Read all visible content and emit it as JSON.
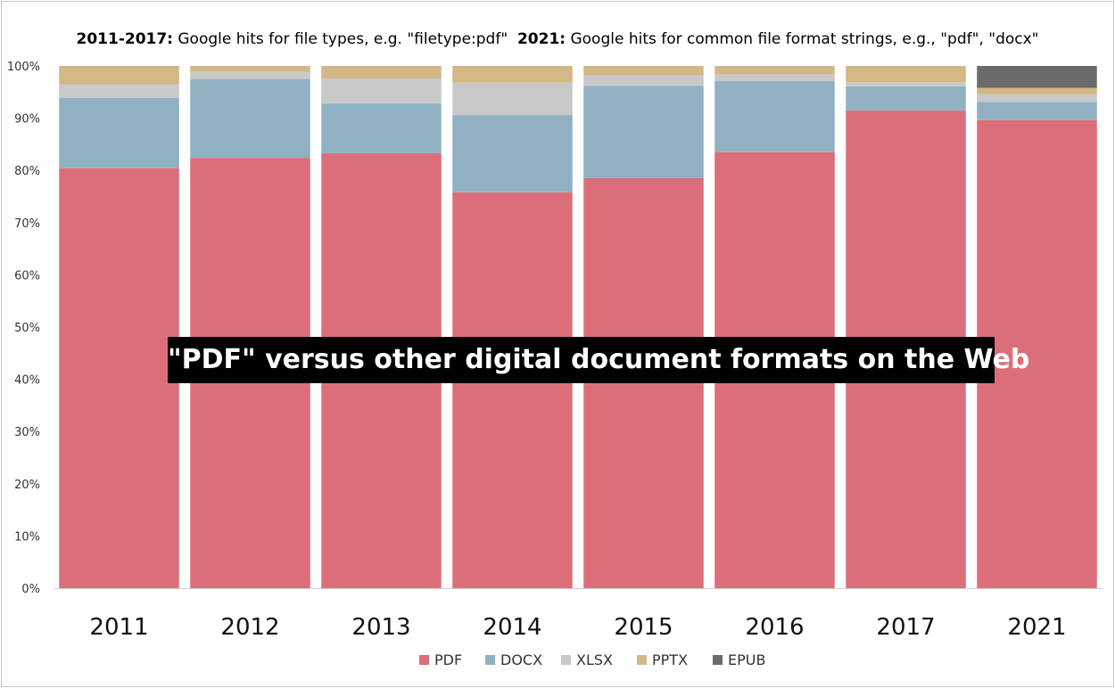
{
  "chart_data": {
    "type": "bar",
    "stacked": true,
    "normalized": true,
    "title_parts": [
      {
        "bold": "2011-2017:",
        "text": " Google hits for file types, e.g. \"filetype:pdf\"  "
      },
      {
        "bold": "2021:",
        "text": " Google hits for common file format strings, e.g., \"pdf\", \"docx\""
      }
    ],
    "overlay_label": "\"PDF\" versus other digital document formats on the Web",
    "categories": [
      "2011",
      "2012",
      "2013",
      "2014",
      "2015",
      "2016",
      "2017",
      "2021"
    ],
    "series": [
      {
        "name": "PDF",
        "color": "#dc6e7a",
        "values": [
          80.4,
          82.4,
          83.3,
          75.8,
          78.5,
          83.5,
          91.5,
          89.6
        ]
      },
      {
        "name": "DOCX",
        "color": "#8fb1c2",
        "values": [
          13.5,
          15.1,
          9.5,
          14.8,
          17.7,
          13.6,
          4.6,
          3.5
        ]
      },
      {
        "name": "XLSX",
        "color": "#c9c9c9",
        "values": [
          2.6,
          1.4,
          4.8,
          6.2,
          2.0,
          1.3,
          0.8,
          1.5
        ]
      },
      {
        "name": "PPTX",
        "color": "#d3b784",
        "values": [
          3.5,
          1.1,
          2.4,
          3.2,
          1.8,
          1.6,
          3.1,
          1.2
        ]
      },
      {
        "name": "EPUB",
        "color": "#6b6b6b",
        "values": [
          0,
          0,
          0,
          0,
          0,
          0,
          0,
          4.2
        ]
      }
    ],
    "yticks": [
      "0%",
      "10%",
      "20%",
      "30%",
      "40%",
      "50%",
      "60%",
      "70%",
      "80%",
      "90%",
      "100%"
    ],
    "ylim": [
      0,
      100
    ],
    "grid": false,
    "legend_position": "bottom"
  }
}
